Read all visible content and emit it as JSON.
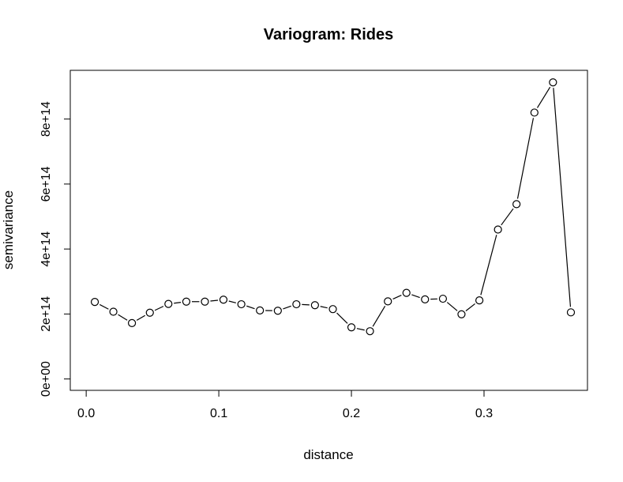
{
  "chart_data": {
    "type": "line",
    "title": "Variogram: Rides",
    "xlabel": "distance",
    "ylabel": "semivariance",
    "xlim": [
      -0.012,
      0.378
    ],
    "ylim": [
      -35000000000000.0,
      950000000000000.0
    ],
    "x_ticks": [
      0.0,
      0.1,
      0.2,
      0.3
    ],
    "x_tick_labels": [
      "0.0",
      "0.1",
      "0.2",
      "0.3"
    ],
    "y_ticks": [
      0,
      200000000000000.0,
      400000000000000.0,
      600000000000000.0,
      800000000000000.0
    ],
    "y_tick_labels": [
      "0e+00",
      "2e+14",
      "4e+14",
      "6e+14",
      "8e+14"
    ],
    "grid": false,
    "legend": "none",
    "series": [
      {
        "line_color": "#000000",
        "marker": "open-circle",
        "points": [
          {
            "x": 0.0065,
            "y": 237000000000000.0
          },
          {
            "x": 0.0205,
            "y": 207000000000000.0
          },
          {
            "x": 0.0345,
            "y": 172000000000000.0
          },
          {
            "x": 0.048,
            "y": 204000000000000.0
          },
          {
            "x": 0.062,
            "y": 231000000000000.0
          },
          {
            "x": 0.0755,
            "y": 238000000000000.0
          },
          {
            "x": 0.0895,
            "y": 238000000000000.0
          },
          {
            "x": 0.1035,
            "y": 244000000000000.0
          },
          {
            "x": 0.117,
            "y": 230000000000000.0
          },
          {
            "x": 0.131,
            "y": 211000000000000.0
          },
          {
            "x": 0.1445,
            "y": 210000000000000.0
          },
          {
            "x": 0.1585,
            "y": 230000000000000.0
          },
          {
            "x": 0.1725,
            "y": 227000000000000.0
          },
          {
            "x": 0.186,
            "y": 215000000000000.0
          },
          {
            "x": 0.2,
            "y": 159000000000000.0
          },
          {
            "x": 0.214,
            "y": 147000000000000.0
          },
          {
            "x": 0.2275,
            "y": 239000000000000.0
          },
          {
            "x": 0.2415,
            "y": 265000000000000.0
          },
          {
            "x": 0.2555,
            "y": 245000000000000.0
          },
          {
            "x": 0.269,
            "y": 247000000000000.0
          },
          {
            "x": 0.283,
            "y": 199000000000000.0
          },
          {
            "x": 0.2965,
            "y": 242000000000000.0
          },
          {
            "x": 0.3105,
            "y": 460000000000000.0
          },
          {
            "x": 0.3245,
            "y": 538000000000000.0
          },
          {
            "x": 0.338,
            "y": 820000000000000.0
          },
          {
            "x": 0.352,
            "y": 913000000000000.0
          },
          {
            "x": 0.3655,
            "y": 205000000000000.0
          }
        ]
      }
    ]
  }
}
